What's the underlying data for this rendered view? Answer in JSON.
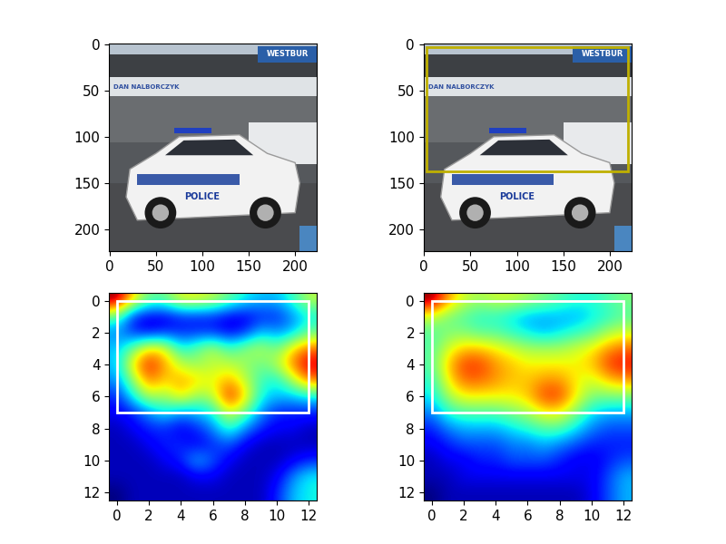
{
  "chart_data": [
    {
      "type": "image",
      "xlim": [
        -0.5,
        223.5
      ],
      "ylim": [
        223.5,
        -0.5
      ],
      "xticks": [
        0,
        50,
        100,
        150,
        200
      ],
      "yticks": [
        0,
        50,
        100,
        150,
        200
      ],
      "photo_texts": [
        "WESTBUR",
        "DAN NALBORCZYK",
        "POLICE"
      ]
    },
    {
      "type": "image",
      "xlim": [
        -0.5,
        223.5
      ],
      "ylim": [
        223.5,
        -0.5
      ],
      "xticks": [
        0,
        50,
        100,
        150,
        200
      ],
      "yticks": [
        0,
        50,
        100,
        150,
        200
      ],
      "photo_texts": [
        "WESTBUR",
        "DAN NALBORCZYK",
        "POLICE"
      ],
      "box": {
        "x0": 3,
        "y0": 3,
        "x1": 220,
        "y1": 137,
        "color": "#bfb000"
      }
    },
    {
      "type": "heatmap",
      "xlim": [
        -0.5,
        12.5
      ],
      "ylim": [
        12.5,
        -0.5
      ],
      "xticks": [
        0,
        2,
        4,
        6,
        8,
        10,
        12
      ],
      "yticks": [
        0,
        2,
        4,
        6,
        8,
        10,
        12
      ],
      "box": {
        "x0": 0,
        "y0": 0,
        "x1": 12,
        "y1": 7,
        "color": "#ffffff"
      },
      "cells": [
        [
          1.0,
          0.7,
          0.5,
          0.5,
          0.65,
          0.65,
          0.6,
          0.5,
          0.4,
          0.35,
          0.35,
          0.45,
          0.6
        ],
        [
          0.5,
          0.2,
          0.15,
          0.15,
          0.2,
          0.2,
          0.2,
          0.15,
          0.15,
          0.2,
          0.2,
          0.3,
          0.4
        ],
        [
          0.3,
          0.2,
          0.15,
          0.2,
          0.2,
          0.2,
          0.2,
          0.15,
          0.2,
          0.35,
          0.3,
          0.35,
          0.5
        ],
        [
          0.35,
          0.5,
          0.7,
          0.65,
          0.4,
          0.5,
          0.6,
          0.45,
          0.55,
          0.6,
          0.5,
          0.7,
          0.8
        ],
        [
          0.35,
          0.7,
          0.9,
          0.75,
          0.6,
          0.55,
          0.6,
          0.6,
          0.55,
          0.5,
          0.6,
          0.8,
          0.95
        ],
        [
          0.3,
          0.55,
          0.8,
          0.7,
          0.75,
          0.7,
          0.65,
          0.75,
          0.6,
          0.45,
          0.4,
          0.6,
          0.8
        ],
        [
          0.2,
          0.4,
          0.6,
          0.55,
          0.7,
          0.55,
          0.6,
          0.9,
          0.7,
          0.4,
          0.35,
          0.35,
          0.4
        ],
        [
          0.15,
          0.2,
          0.3,
          0.4,
          0.3,
          0.35,
          0.4,
          0.65,
          0.5,
          0.3,
          0.2,
          0.2,
          0.2
        ],
        [
          0.1,
          0.15,
          0.2,
          0.2,
          0.15,
          0.2,
          0.3,
          0.45,
          0.3,
          0.2,
          0.15,
          0.15,
          0.1
        ],
        [
          0.1,
          0.1,
          0.15,
          0.2,
          0.2,
          0.15,
          0.2,
          0.25,
          0.15,
          0.1,
          0.1,
          0.1,
          0.1
        ],
        [
          0.1,
          0.1,
          0.1,
          0.15,
          0.2,
          0.35,
          0.25,
          0.15,
          0.1,
          0.1,
          0.1,
          0.15,
          0.2
        ],
        [
          0.1,
          0.1,
          0.1,
          0.1,
          0.1,
          0.15,
          0.15,
          0.1,
          0.1,
          0.1,
          0.15,
          0.3,
          0.4
        ],
        [
          0.05,
          0.1,
          0.1,
          0.1,
          0.1,
          0.1,
          0.1,
          0.1,
          0.1,
          0.1,
          0.2,
          0.35,
          0.4
        ]
      ]
    },
    {
      "type": "heatmap",
      "xlim": [
        -0.5,
        12.5
      ],
      "ylim": [
        12.5,
        -0.5
      ],
      "xticks": [
        0,
        2,
        4,
        6,
        8,
        10,
        12
      ],
      "yticks": [
        0,
        2,
        4,
        6,
        8,
        10,
        12
      ],
      "box": {
        "x0": 0,
        "y0": 0,
        "x1": 12,
        "y1": 7,
        "color": "#ffffff"
      },
      "cells": [
        [
          1.0,
          0.75,
          0.6,
          0.55,
          0.6,
          0.6,
          0.55,
          0.5,
          0.45,
          0.4,
          0.4,
          0.45,
          0.5
        ],
        [
          0.6,
          0.5,
          0.45,
          0.4,
          0.4,
          0.35,
          0.3,
          0.3,
          0.3,
          0.3,
          0.35,
          0.4,
          0.45
        ],
        [
          0.45,
          0.5,
          0.5,
          0.45,
          0.45,
          0.4,
          0.35,
          0.3,
          0.35,
          0.4,
          0.45,
          0.55,
          0.6
        ],
        [
          0.45,
          0.6,
          0.7,
          0.7,
          0.65,
          0.6,
          0.55,
          0.55,
          0.55,
          0.6,
          0.65,
          0.75,
          0.8
        ],
        [
          0.45,
          0.7,
          0.85,
          0.85,
          0.75,
          0.7,
          0.65,
          0.65,
          0.65,
          0.65,
          0.7,
          0.85,
          0.9
        ],
        [
          0.4,
          0.65,
          0.8,
          0.8,
          0.75,
          0.7,
          0.7,
          0.75,
          0.75,
          0.65,
          0.6,
          0.7,
          0.75
        ],
        [
          0.35,
          0.55,
          0.65,
          0.65,
          0.65,
          0.65,
          0.7,
          0.85,
          0.85,
          0.65,
          0.5,
          0.5,
          0.5
        ],
        [
          0.25,
          0.4,
          0.45,
          0.45,
          0.45,
          0.5,
          0.55,
          0.65,
          0.65,
          0.5,
          0.35,
          0.3,
          0.3
        ],
        [
          0.15,
          0.25,
          0.3,
          0.3,
          0.3,
          0.35,
          0.4,
          0.45,
          0.45,
          0.35,
          0.25,
          0.2,
          0.2
        ],
        [
          0.1,
          0.15,
          0.2,
          0.2,
          0.2,
          0.25,
          0.25,
          0.3,
          0.25,
          0.2,
          0.15,
          0.15,
          0.15
        ],
        [
          0.05,
          0.1,
          0.1,
          0.15,
          0.15,
          0.2,
          0.2,
          0.2,
          0.15,
          0.1,
          0.1,
          0.15,
          0.2
        ],
        [
          0.05,
          0.05,
          0.1,
          0.1,
          0.1,
          0.1,
          0.1,
          0.1,
          0.1,
          0.1,
          0.1,
          0.2,
          0.3
        ],
        [
          0.0,
          0.05,
          0.05,
          0.05,
          0.05,
          0.05,
          0.05,
          0.05,
          0.05,
          0.05,
          0.1,
          0.2,
          0.3
        ]
      ]
    }
  ]
}
